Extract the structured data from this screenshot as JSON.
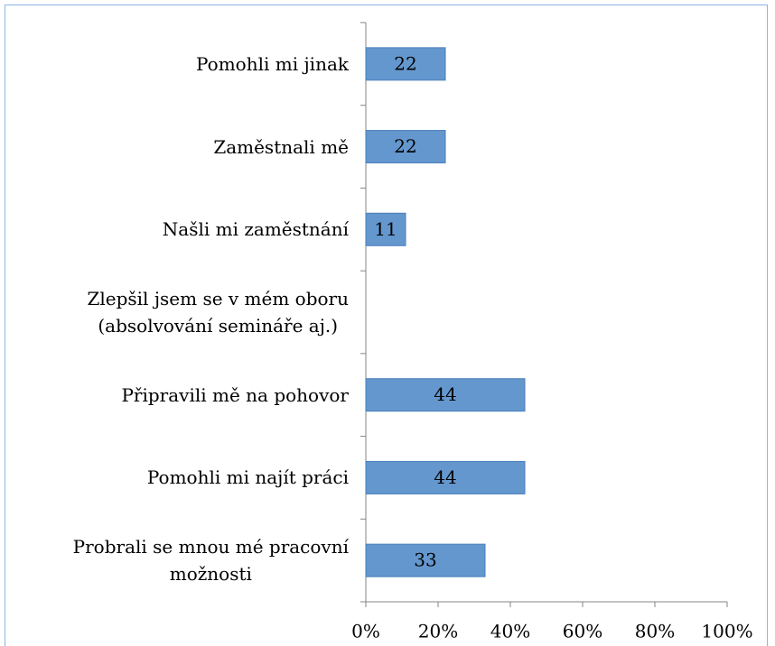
{
  "chart_data": {
    "type": "barh",
    "categories": [
      "Pomohli mi jinak",
      "Zaměstnali mě",
      "Našli mi zaměstnání",
      "Zlepšil jsem se v mém oboru\n(absolvování semináře aj.)",
      "Připravili mě na pohovor",
      "Pomohli mi najít práci",
      "Probrali se mnou mé pracovní\nmožnosti"
    ],
    "values": [
      22,
      22,
      11,
      null,
      44,
      44,
      33
    ],
    "color": "#6497cd",
    "xlim": [
      0,
      100
    ],
    "xticks": [
      {
        "value": 0,
        "label": "0%"
      },
      {
        "value": 20,
        "label": "20%"
      },
      {
        "value": 40,
        "label": "40%"
      },
      {
        "value": 60,
        "label": "60%"
      },
      {
        "value": 80,
        "label": "80%"
      },
      {
        "value": 100,
        "label": "100%"
      }
    ],
    "grid": false
  }
}
